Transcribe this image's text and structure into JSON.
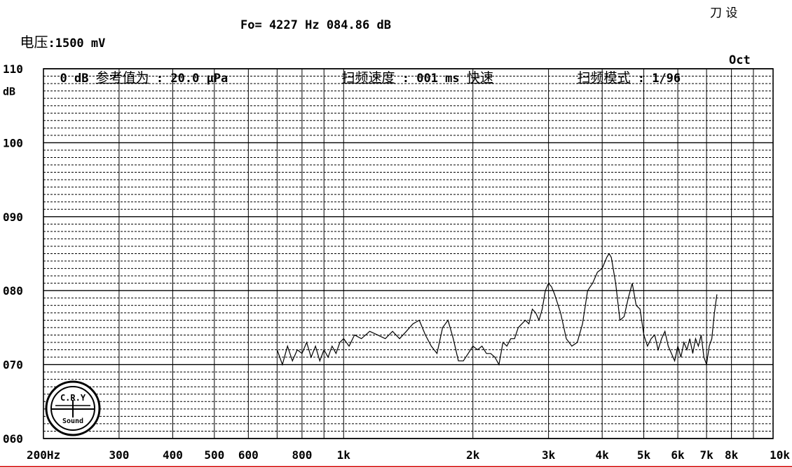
{
  "header": {
    "voltage_label": "电压",
    "voltage_value": ":1500 mV",
    "fo_text": "Fo= 4227 Hz 084.86 dB",
    "top_right": "刀 设"
  },
  "subheader": {
    "ref_prefix": "0 dB ",
    "ref_label": "参考值为",
    "ref_value": " : 20.0 μPa",
    "speed_label": "扫频速度",
    "speed_value": " : 001 ms ",
    "speed_mode": "快速",
    "mode_label": "扫频模式",
    "mode_value": " : 1/96",
    "oct": "Oct"
  },
  "logo": {
    "top": "C.R.Y",
    "bottom": "Sound"
  },
  "chart_data": {
    "type": "line",
    "title": "",
    "xlabel": "",
    "ylabel": "dB",
    "x_scale": "log",
    "xlim": [
      200,
      10000
    ],
    "ylim": [
      60,
      110
    ],
    "grid": true,
    "y_ticks": [
      {
        "value": 110,
        "label": "110"
      },
      {
        "value": 100,
        "label": "100"
      },
      {
        "value": 90,
        "label": "090"
      },
      {
        "value": 80,
        "label": "080"
      },
      {
        "value": 70,
        "label": "070"
      },
      {
        "value": 60,
        "label": "060"
      }
    ],
    "y_unit_label": "dB",
    "x_ticks": [
      {
        "value": 200,
        "label": "200Hz"
      },
      {
        "value": 300,
        "label": "300"
      },
      {
        "value": 400,
        "label": "400"
      },
      {
        "value": 500,
        "label": "500"
      },
      {
        "value": 600,
        "label": "600"
      },
      {
        "value": 800,
        "label": "800"
      },
      {
        "value": 1000,
        "label": "1k"
      },
      {
        "value": 2000,
        "label": "2k"
      },
      {
        "value": 3000,
        "label": "3k"
      },
      {
        "value": 4000,
        "label": "4k"
      },
      {
        "value": 5000,
        "label": "5k"
      },
      {
        "value": 6000,
        "label": "6k"
      },
      {
        "value": 7000,
        "label": "7k"
      },
      {
        "value": 8000,
        "label": "8k"
      },
      {
        "value": 10000,
        "label": "10k"
      }
    ],
    "x_gridlines": [
      200,
      300,
      400,
      500,
      600,
      700,
      800,
      900,
      1000,
      2000,
      3000,
      4000,
      5000,
      6000,
      7000,
      8000,
      9000,
      10000
    ],
    "series": [
      {
        "points": [
          [
            700,
            72.0
          ],
          [
            720,
            70.0
          ],
          [
            740,
            72.5
          ],
          [
            760,
            70.5
          ],
          [
            780,
            72.0
          ],
          [
            800,
            71.5
          ],
          [
            820,
            73.0
          ],
          [
            840,
            71.0
          ],
          [
            860,
            72.5
          ],
          [
            880,
            70.5
          ],
          [
            900,
            72.0
          ],
          [
            920,
            71.0
          ],
          [
            940,
            72.5
          ],
          [
            960,
            71.5
          ],
          [
            980,
            73.0
          ],
          [
            1000,
            73.5
          ],
          [
            1030,
            72.5
          ],
          [
            1060,
            74.0
          ],
          [
            1100,
            73.5
          ],
          [
            1150,
            74.5
          ],
          [
            1200,
            74.0
          ],
          [
            1250,
            73.5
          ],
          [
            1300,
            74.5
          ],
          [
            1350,
            73.5
          ],
          [
            1400,
            74.5
          ],
          [
            1450,
            75.5
          ],
          [
            1500,
            76.0
          ],
          [
            1550,
            74.0
          ],
          [
            1600,
            72.5
          ],
          [
            1650,
            71.5
          ],
          [
            1700,
            75.0
          ],
          [
            1750,
            76.0
          ],
          [
            1800,
            73.5
          ],
          [
            1850,
            70.5
          ],
          [
            1900,
            70.5
          ],
          [
            1950,
            71.5
          ],
          [
            2000,
            72.5
          ],
          [
            2050,
            72.0
          ],
          [
            2100,
            72.5
          ],
          [
            2150,
            71.5
          ],
          [
            2200,
            71.5
          ],
          [
            2250,
            71.0
          ],
          [
            2300,
            70.0
          ],
          [
            2350,
            73.0
          ],
          [
            2400,
            72.5
          ],
          [
            2450,
            73.5
          ],
          [
            2500,
            73.5
          ],
          [
            2550,
            75.0
          ],
          [
            2600,
            75.5
          ],
          [
            2650,
            76.0
          ],
          [
            2700,
            75.5
          ],
          [
            2750,
            77.5
          ],
          [
            2800,
            77.0
          ],
          [
            2850,
            76.0
          ],
          [
            2900,
            77.5
          ],
          [
            2950,
            80.0
          ],
          [
            3000,
            81.0
          ],
          [
            3050,
            80.5
          ],
          [
            3100,
            79.5
          ],
          [
            3200,
            77.0
          ],
          [
            3300,
            73.5
          ],
          [
            3400,
            72.5
          ],
          [
            3500,
            73.0
          ],
          [
            3600,
            75.5
          ],
          [
            3700,
            80.0
          ],
          [
            3800,
            81.0
          ],
          [
            3900,
            82.5
          ],
          [
            4000,
            83.0
          ],
          [
            4100,
            84.5
          ],
          [
            4150,
            85.0
          ],
          [
            4200,
            84.5
          ],
          [
            4300,
            81.0
          ],
          [
            4400,
            76.0
          ],
          [
            4500,
            76.5
          ],
          [
            4600,
            79.0
          ],
          [
            4700,
            81.0
          ],
          [
            4800,
            78.0
          ],
          [
            4900,
            77.5
          ],
          [
            5000,
            74.0
          ],
          [
            5100,
            72.5
          ],
          [
            5200,
            73.5
          ],
          [
            5300,
            74.0
          ],
          [
            5400,
            72.0
          ],
          [
            5500,
            73.5
          ],
          [
            5600,
            74.5
          ],
          [
            5700,
            72.5
          ],
          [
            5800,
            71.5
          ],
          [
            5900,
            70.5
          ],
          [
            6000,
            72.5
          ],
          [
            6100,
            71.0
          ],
          [
            6200,
            73.0
          ],
          [
            6300,
            72.0
          ],
          [
            6400,
            73.5
          ],
          [
            6500,
            71.5
          ],
          [
            6600,
            73.5
          ],
          [
            6700,
            72.5
          ],
          [
            6800,
            74.0
          ],
          [
            6900,
            71.0
          ],
          [
            7000,
            70.0
          ],
          [
            7100,
            72.5
          ],
          [
            7200,
            73.5
          ],
          [
            7300,
            77.0
          ],
          [
            7400,
            79.5
          ]
        ]
      }
    ]
  },
  "colors": {
    "grid": "#000000",
    "trace": "#000000",
    "bottom_rule": "#dd3333"
  }
}
